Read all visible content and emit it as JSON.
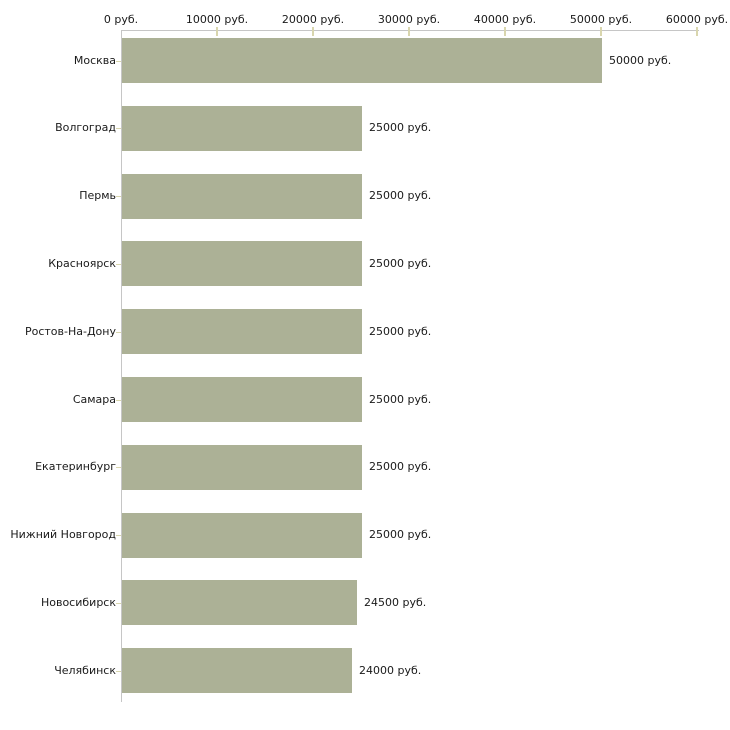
{
  "chart_data": {
    "type": "bar",
    "orientation": "horizontal",
    "title": "",
    "xlabel": "",
    "ylabel": "",
    "xlim": [
      0,
      60000
    ],
    "grid": false,
    "legend": false,
    "categories": [
      "Москва",
      "Волгоград",
      "Пермь",
      "Красноярск",
      "Ростов-На-Дону",
      "Самара",
      "Екатеринбург",
      "Нижний Новгород",
      "Новосибирск",
      "Челябинск"
    ],
    "values": [
      50000,
      25000,
      25000,
      25000,
      25000,
      25000,
      25000,
      25000,
      24500,
      24000
    ],
    "value_labels": [
      "50000 руб.",
      "25000 руб.",
      "25000 руб.",
      "25000 руб.",
      "25000 руб.",
      "25000 руб.",
      "25000 руб.",
      "25000 руб.",
      "24500 руб.",
      "24000 руб."
    ],
    "x_ticks": [
      {
        "value": 0,
        "label": "0 руб."
      },
      {
        "value": 10000,
        "label": "10000 руб."
      },
      {
        "value": 20000,
        "label": "20000 руб."
      },
      {
        "value": 30000,
        "label": "30000 руб."
      },
      {
        "value": 40000,
        "label": "40000 руб."
      },
      {
        "value": 50000,
        "label": "50000 руб."
      },
      {
        "value": 60000,
        "label": "60000 руб."
      }
    ],
    "colors": {
      "bar_fill": "#acb196",
      "axis_line": "#c6c6c6",
      "tick_mark": "#d9d6ae",
      "text": "#1a1a1a"
    }
  }
}
